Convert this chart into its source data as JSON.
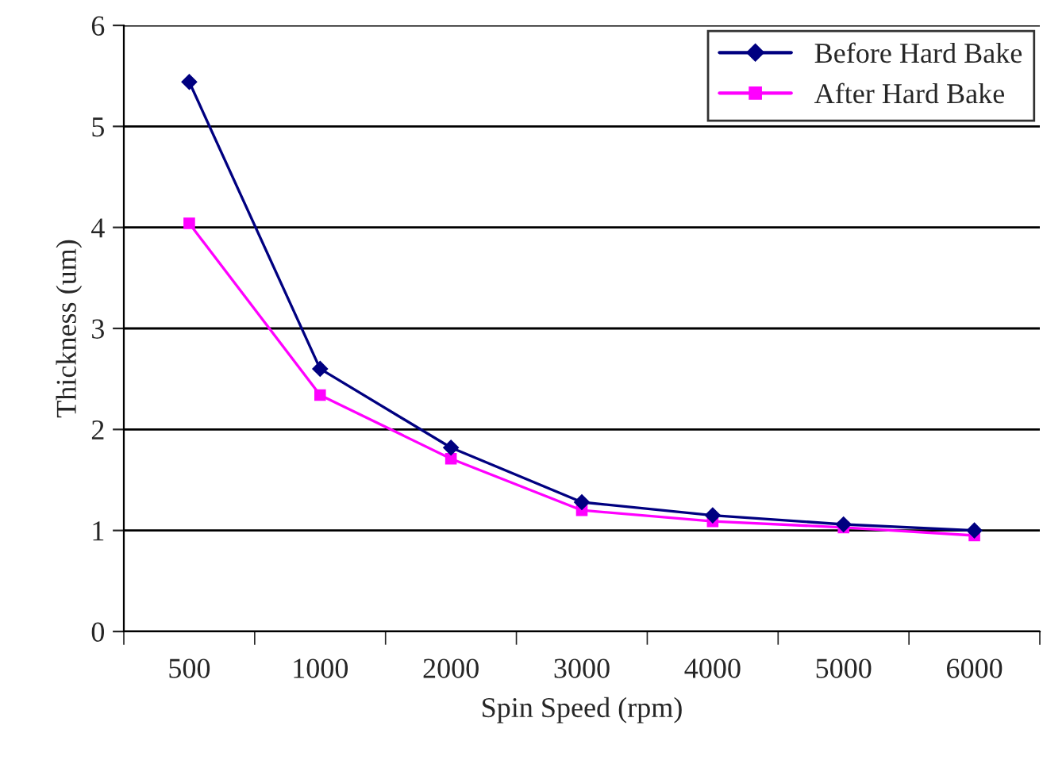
{
  "chart_data": {
    "type": "line",
    "xlabel": "Spin Speed (rpm)",
    "ylabel": "Thickness (um)",
    "categories": [
      "500",
      "1000",
      "2000",
      "3000",
      "4000",
      "5000",
      "6000"
    ],
    "series": [
      {
        "name": "Before Hard Bake",
        "color": "#000080",
        "marker": "diamond",
        "values": [
          5.44,
          2.6,
          1.82,
          1.28,
          1.15,
          1.06,
          1.0
        ]
      },
      {
        "name": "After Hard Bake",
        "color": "#ff00ff",
        "marker": "square",
        "values": [
          4.04,
          2.34,
          1.71,
          1.2,
          1.09,
          1.03,
          0.95
        ]
      }
    ],
    "ylim": [
      0,
      6
    ],
    "yticks": [
      0,
      1,
      2,
      3,
      4,
      5,
      6
    ],
    "grid": "y",
    "legend": "top right"
  }
}
